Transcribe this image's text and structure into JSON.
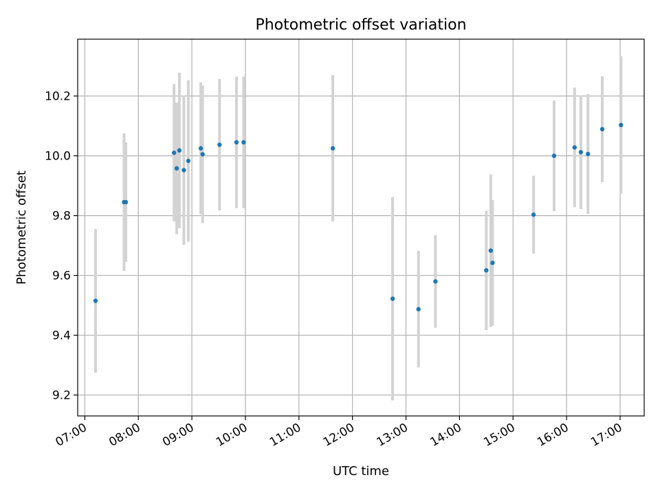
{
  "chart_data": {
    "type": "scatter",
    "title": "Photometric offset variation",
    "xlabel": "UTC time",
    "ylabel": "Photometric offset",
    "x_ticks": [
      "07:00",
      "08:00",
      "09:00",
      "10:00",
      "11:00",
      "12:00",
      "13:00",
      "14:00",
      "15:00",
      "16:00",
      "17:00"
    ],
    "y_ticks": [
      "9.2",
      "9.4",
      "9.6",
      "9.8",
      "10.0",
      "10.2"
    ],
    "xlim": [
      "06:52",
      "17:27"
    ],
    "ylim": [
      9.13,
      10.39
    ],
    "grid": true,
    "marker_color": "#1f77b4",
    "errorbar_color": "#d3d3d3",
    "points": [
      {
        "time": "07:12",
        "y": 9.515,
        "err": 0.24
      },
      {
        "time": "07:44",
        "y": 9.845,
        "err": 0.23
      },
      {
        "time": "07:46",
        "y": 9.845,
        "err": 0.2
      },
      {
        "time": "08:40",
        "y": 10.01,
        "err": 0.23
      },
      {
        "time": "08:43",
        "y": 9.958,
        "err": 0.22
      },
      {
        "time": "08:46",
        "y": 10.018,
        "err": 0.26
      },
      {
        "time": "08:51",
        "y": 9.952,
        "err": 0.25
      },
      {
        "time": "08:56",
        "y": 9.983,
        "err": 0.27
      },
      {
        "time": "09:10",
        "y": 10.025,
        "err": 0.22
      },
      {
        "time": "09:12",
        "y": 10.005,
        "err": 0.23
      },
      {
        "time": "09:31",
        "y": 10.037,
        "err": 0.22
      },
      {
        "time": "09:50",
        "y": 10.045,
        "err": 0.22
      },
      {
        "time": "09:58",
        "y": 10.045,
        "err": 0.22
      },
      {
        "time": "11:38",
        "y": 10.025,
        "err": 0.245
      },
      {
        "time": "12:45",
        "y": 9.522,
        "err": 0.34
      },
      {
        "time": "13:14",
        "y": 9.487,
        "err": 0.195
      },
      {
        "time": "13:33",
        "y": 9.58,
        "err": 0.155
      },
      {
        "time": "14:30",
        "y": 9.617,
        "err": 0.2
      },
      {
        "time": "14:35",
        "y": 9.683,
        "err": 0.255
      },
      {
        "time": "14:37",
        "y": 9.642,
        "err": 0.21
      },
      {
        "time": "15:23",
        "y": 9.803,
        "err": 0.13
      },
      {
        "time": "15:46",
        "y": 10.0,
        "err": 0.185
      },
      {
        "time": "16:09",
        "y": 10.028,
        "err": 0.2
      },
      {
        "time": "16:16",
        "y": 10.012,
        "err": 0.19
      },
      {
        "time": "16:24",
        "y": 10.006,
        "err": 0.2
      },
      {
        "time": "16:40",
        "y": 10.089,
        "err": 0.177
      },
      {
        "time": "17:01",
        "y": 10.103,
        "err": 0.23
      }
    ]
  }
}
